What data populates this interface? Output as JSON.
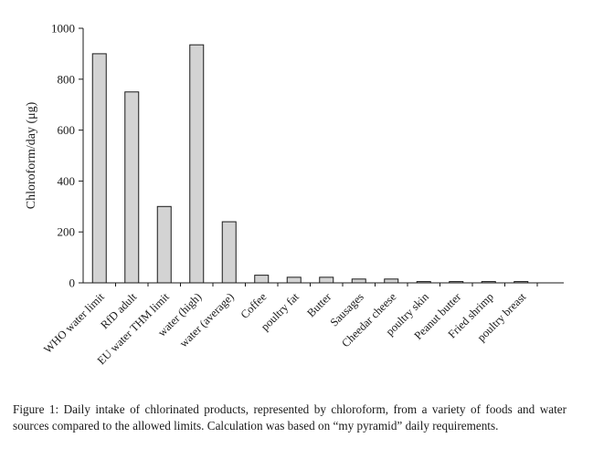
{
  "chart_data": {
    "type": "bar",
    "title": "",
    "xlabel": "",
    "ylabel": "Chloroform/day (μg)",
    "ylim": [
      0,
      1000
    ],
    "yticks": [
      0,
      200,
      400,
      600,
      800,
      1000
    ],
    "grid": false,
    "legend": "none",
    "categories": [
      "WHO water limit",
      "RfD adult",
      "EU water THM limit",
      "water (high)",
      "water (average)",
      "Coffee",
      "poultry fat",
      "Butter",
      "Sausages",
      "Cheedar cheese",
      "poultry skin",
      "Peanut butter",
      "Fried shrimp",
      "poultry breast"
    ],
    "values": [
      900,
      750,
      300,
      935,
      240,
      30,
      22,
      22,
      15,
      15,
      5,
      5,
      5,
      5
    ]
  },
  "caption": "Figure 1: Daily intake of chlorinated products, represented by chloroform, from a variety of foods and water sources compared to the allowed limits. Calculation was based on “my pyramid” daily requirements."
}
